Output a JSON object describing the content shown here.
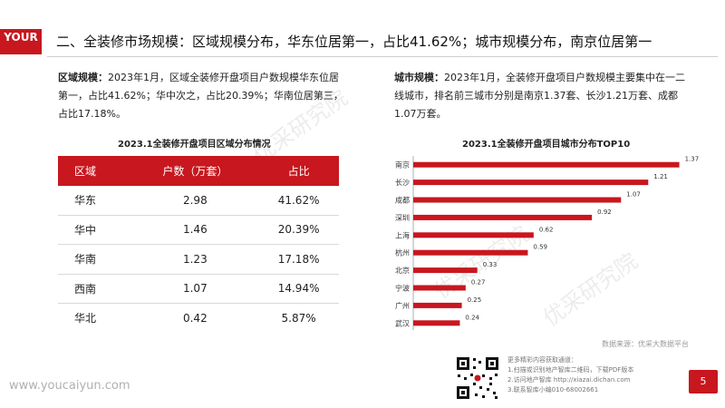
{
  "logo": {
    "text": "YOUR"
  },
  "title": "二、全装修市场规模：区域规模分布，华东位居第一，占比41.62%；城市规模分布，南京位居第一",
  "watermark": "优采研究院",
  "left_para": {
    "label": "区域规模：",
    "text": "2023年1月，区域全装修开盘项目户数规模华东位居第一，占比41.62%；华中次之，占比20.39%；华南位居第三，占比17.18%。"
  },
  "right_para": {
    "label": "城市规模：",
    "text": "2023年1月，全装修开盘项目户数规模主要集中在一二线城市，排名前三城市分别是南京1.37套、长沙1.21万套、成都1.07万套。"
  },
  "table": {
    "title": "2023.1全装修开盘项目区域分布情况",
    "headers": [
      "区域",
      "户数（万套）",
      "占比"
    ],
    "rows": [
      [
        "华东",
        "2.98",
        "41.62%"
      ],
      [
        "华中",
        "1.46",
        "20.39%"
      ],
      [
        "华南",
        "1.23",
        "17.18%"
      ],
      [
        "西南",
        "1.07",
        "14.94%"
      ],
      [
        "华北",
        "0.42",
        "5.87%"
      ]
    ]
  },
  "chart_data": {
    "type": "bar",
    "orientation": "horizontal",
    "title": "2023.1全装修开盘项目城市分布TOP10",
    "categories": [
      "南京",
      "长沙",
      "成都",
      "深圳",
      "上海",
      "杭州",
      "北京",
      "宁波",
      "广州",
      "武汉"
    ],
    "values": [
      1.37,
      1.21,
      1.07,
      0.92,
      0.62,
      0.59,
      0.33,
      0.27,
      0.25,
      0.24
    ],
    "labels": [
      "1.37",
      "1.21",
      "1.07",
      "0.92",
      "0.62",
      "0.59",
      "0.33",
      "0.27",
      "0.25",
      "0.24"
    ],
    "xlim": [
      0,
      1.4
    ],
    "color": "#c8171e"
  },
  "source": "数据来源：优采大数据平台",
  "more_info": {
    "heading": "更多精彩内容获取通道：",
    "line1": "1.扫描或识别地产智库二维码，下载PDF版本",
    "line2": "2.访问地产智库 http://xiazai.dichan.com",
    "line3": "3.联系智库小编010-68002661"
  },
  "footer_url": "www.youcaiyun.com",
  "page_number": "5"
}
